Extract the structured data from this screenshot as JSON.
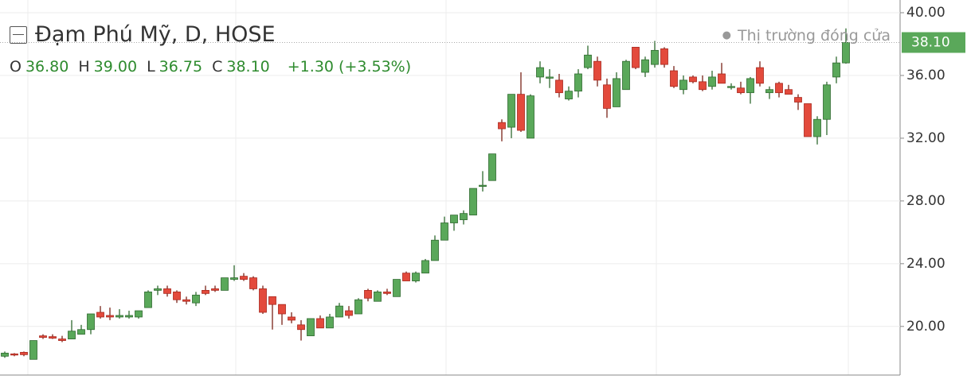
{
  "chart_data": {
    "type": "candlestick",
    "title": "Đạm Phú Mỹ, D, HOSE",
    "ohlc_legend": [
      {
        "label": "O",
        "value": "36.80"
      },
      {
        "label": "H",
        "value": "39.00"
      },
      {
        "label": "L",
        "value": "36.75"
      },
      {
        "label": "C",
        "value": "38.10"
      }
    ],
    "change": "+1.30 (+3.53%)",
    "status": "Thị trường đóng cửa",
    "last_price": {
      "value": 38.1,
      "label": "38.10"
    },
    "up_color": "#5aa85a",
    "down_color": "#e34a3c",
    "ylim": [
      16.9,
      40.81
    ],
    "yticks": [
      {
        "value": 20,
        "label": "20.00"
      },
      {
        "value": 24,
        "label": "24.00"
      },
      {
        "value": 28,
        "label": "28.00"
      },
      {
        "value": 32,
        "label": "32.00"
      },
      {
        "value": 36,
        "label": "36.00"
      },
      {
        "value": 40,
        "label": "40.00"
      }
    ],
    "grid": true,
    "open": [
      18.1,
      18.25,
      18.35,
      17.9,
      19.4,
      19.35,
      19.2,
      19.2,
      19.5,
      19.8,
      20.9,
      20.7,
      20.6,
      20.6,
      20.6,
      21.2,
      22.3,
      22.4,
      22.2,
      21.7,
      21.5,
      22.3,
      22.4,
      22.3,
      23.0,
      23.2,
      23.1,
      22.4,
      21.9,
      21.4,
      20.6,
      20.1,
      19.4,
      20.5,
      19.9,
      20.6,
      21.0,
      20.8,
      22.3,
      21.6,
      22.2,
      21.9,
      23.4,
      22.9,
      23.4,
      24.2,
      25.5,
      26.6,
      26.8,
      27.1,
      29.0,
      29.3,
      33.0,
      32.7,
      34.8,
      32.0,
      35.9,
      35.9,
      35.7,
      34.5,
      35.0,
      36.5,
      36.9,
      35.4,
      34.0,
      35.1,
      37.8,
      36.2,
      36.7,
      37.7,
      36.3,
      35.1,
      35.9,
      35.6,
      35.3,
      36.1,
      35.3,
      35.2,
      34.9,
      36.5,
      34.9,
      35.5,
      35.1,
      34.6,
      34.2,
      32.1,
      33.2,
      35.9,
      36.8
    ],
    "high": [
      18.4,
      18.3,
      18.4,
      19.1,
      19.5,
      19.5,
      19.4,
      20.4,
      20.1,
      20.8,
      21.3,
      21.2,
      21.1,
      21.0,
      21.0,
      22.3,
      22.6,
      22.6,
      22.3,
      21.9,
      22.2,
      22.6,
      22.6,
      23.1,
      23.9,
      23.4,
      23.2,
      22.6,
      21.9,
      21.4,
      20.9,
      20.4,
      20.5,
      20.7,
      20.8,
      21.5,
      21.3,
      21.8,
      22.4,
      22.3,
      22.4,
      23.0,
      23.5,
      23.5,
      24.3,
      25.8,
      27.0,
      27.1,
      27.4,
      28.8,
      29.9,
      31.0,
      33.2,
      34.8,
      36.2,
      34.8,
      36.9,
      36.4,
      36.1,
      35.3,
      36.4,
      37.9,
      37.2,
      35.8,
      36.2,
      37.0,
      37.8,
      37.2,
      38.2,
      37.8,
      36.6,
      36.0,
      36.0,
      36.0,
      36.3,
      36.8,
      35.5,
      35.6,
      35.9,
      36.9,
      35.3,
      35.6,
      35.4,
      34.8,
      34.2,
      33.4,
      35.6,
      37.2,
      39.0
    ],
    "low": [
      18.0,
      18.1,
      18.1,
      17.9,
      19.2,
      19.2,
      19.0,
      19.2,
      19.5,
      19.5,
      20.5,
      20.4,
      20.5,
      20.5,
      20.5,
      21.2,
      22.0,
      21.9,
      21.5,
      21.4,
      21.3,
      22.0,
      22.2,
      22.3,
      22.9,
      22.9,
      22.3,
      20.8,
      19.8,
      20.1,
      20.2,
      19.1,
      19.4,
      19.9,
      19.9,
      20.6,
      20.5,
      20.8,
      21.6,
      21.6,
      22.0,
      21.9,
      22.9,
      22.8,
      23.4,
      24.2,
      25.5,
      26.1,
      26.5,
      27.1,
      28.6,
      29.3,
      31.8,
      32.0,
      32.4,
      32.0,
      35.5,
      35.2,
      34.6,
      34.4,
      34.6,
      36.4,
      35.3,
      33.3,
      34.0,
      35.1,
      36.4,
      35.9,
      36.5,
      36.5,
      35.2,
      34.8,
      35.5,
      35.0,
      35.1,
      35.5,
      35.1,
      34.8,
      34.2,
      35.3,
      34.5,
      34.6,
      34.8,
      33.8,
      32.1,
      31.6,
      32.2,
      35.5,
      36.75
    ],
    "close": [
      18.3,
      18.2,
      18.2,
      19.1,
      19.3,
      19.25,
      19.1,
      19.7,
      19.8,
      20.8,
      20.6,
      20.6,
      20.7,
      20.7,
      21.0,
      22.2,
      22.4,
      22.1,
      21.7,
      21.6,
      22.0,
      22.1,
      22.3,
      23.1,
      23.1,
      23.0,
      22.4,
      20.9,
      21.4,
      20.8,
      20.4,
      19.8,
      20.5,
      19.9,
      20.6,
      21.3,
      20.7,
      21.7,
      21.8,
      22.2,
      22.1,
      23.0,
      22.9,
      23.4,
      24.2,
      25.5,
      26.6,
      27.1,
      27.2,
      28.8,
      29.0,
      31.0,
      32.6,
      34.8,
      32.5,
      34.7,
      36.5,
      35.9,
      34.9,
      35.0,
      36.1,
      37.3,
      35.7,
      33.9,
      35.8,
      36.9,
      36.5,
      37.0,
      37.6,
      36.7,
      35.3,
      35.7,
      35.6,
      35.1,
      35.9,
      35.5,
      35.3,
      34.9,
      35.8,
      35.5,
      35.1,
      34.9,
      34.8,
      34.3,
      32.1,
      33.2,
      35.4,
      36.8,
      38.1
    ]
  }
}
